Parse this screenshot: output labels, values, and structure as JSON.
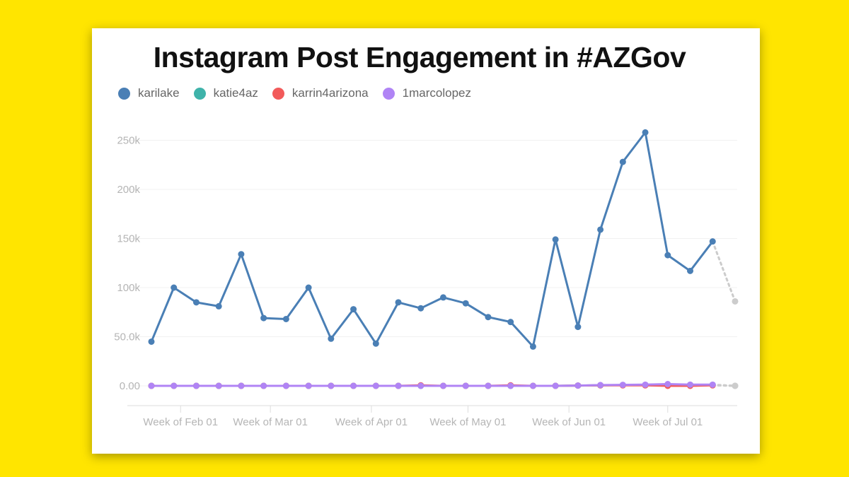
{
  "title": "Instagram Post Engagement in #AZGov",
  "chart_data": {
    "type": "line",
    "title": "Instagram Post Engagement in #AZGov",
    "xlabel": "",
    "ylabel": "",
    "ylim": [
      0,
      270000
    ],
    "y_ticks": [
      0,
      50000,
      100000,
      150000,
      200000,
      250000
    ],
    "y_tick_labels": [
      "0.00",
      "50.0k",
      "100k",
      "150k",
      "200k",
      "250k"
    ],
    "x_tick_labels": [
      {
        "label": "Week of Feb 01",
        "index": 1.3
      },
      {
        "label": "Week of Mar 01",
        "index": 5.3
      },
      {
        "label": "Week of Apr 01",
        "index": 9.8
      },
      {
        "label": "Week of May 01",
        "index": 14.1
      },
      {
        "label": "Week of Jun 01",
        "index": 18.6
      },
      {
        "label": "Week of Jul 01",
        "index": 23.0
      }
    ],
    "grid": true,
    "legend_position": "top-left",
    "num_weeks": 27,
    "partial_period_color": "#cccccc",
    "series": [
      {
        "name": "karilake",
        "color": "#4a7fb5",
        "values": [
          45000,
          100000,
          85000,
          81000,
          134000,
          69000,
          68000,
          100000,
          48000,
          78000,
          43000,
          85000,
          79000,
          90000,
          84000,
          70000,
          65000,
          40000,
          149000,
          60000,
          159000,
          228000,
          258000,
          133000,
          117000,
          147000,
          86000
        ]
      },
      {
        "name": "katie4az",
        "color": "#3fb3aa",
        "values": [
          0,
          0,
          0,
          0,
          0,
          0,
          0,
          0,
          0,
          0,
          0,
          0,
          0,
          0,
          0,
          0,
          0,
          0,
          0,
          300,
          500,
          800,
          800,
          1000,
          1000,
          1000,
          0
        ]
      },
      {
        "name": "karrin4arizona",
        "color": "#f25a5a",
        "values": [
          0,
          0,
          0,
          0,
          0,
          0,
          0,
          0,
          0,
          0,
          0,
          0,
          500,
          0,
          0,
          0,
          500,
          0,
          0,
          300,
          500,
          500,
          500,
          0,
          0,
          500,
          0
        ]
      },
      {
        "name": "1marcolopez",
        "color": "#b084f5",
        "values": [
          0,
          0,
          0,
          0,
          0,
          0,
          0,
          0,
          0,
          0,
          0,
          0,
          0,
          0,
          0,
          0,
          0,
          0,
          0,
          300,
          800,
          1000,
          1200,
          1800,
          1200,
          1200,
          0
        ]
      }
    ]
  }
}
